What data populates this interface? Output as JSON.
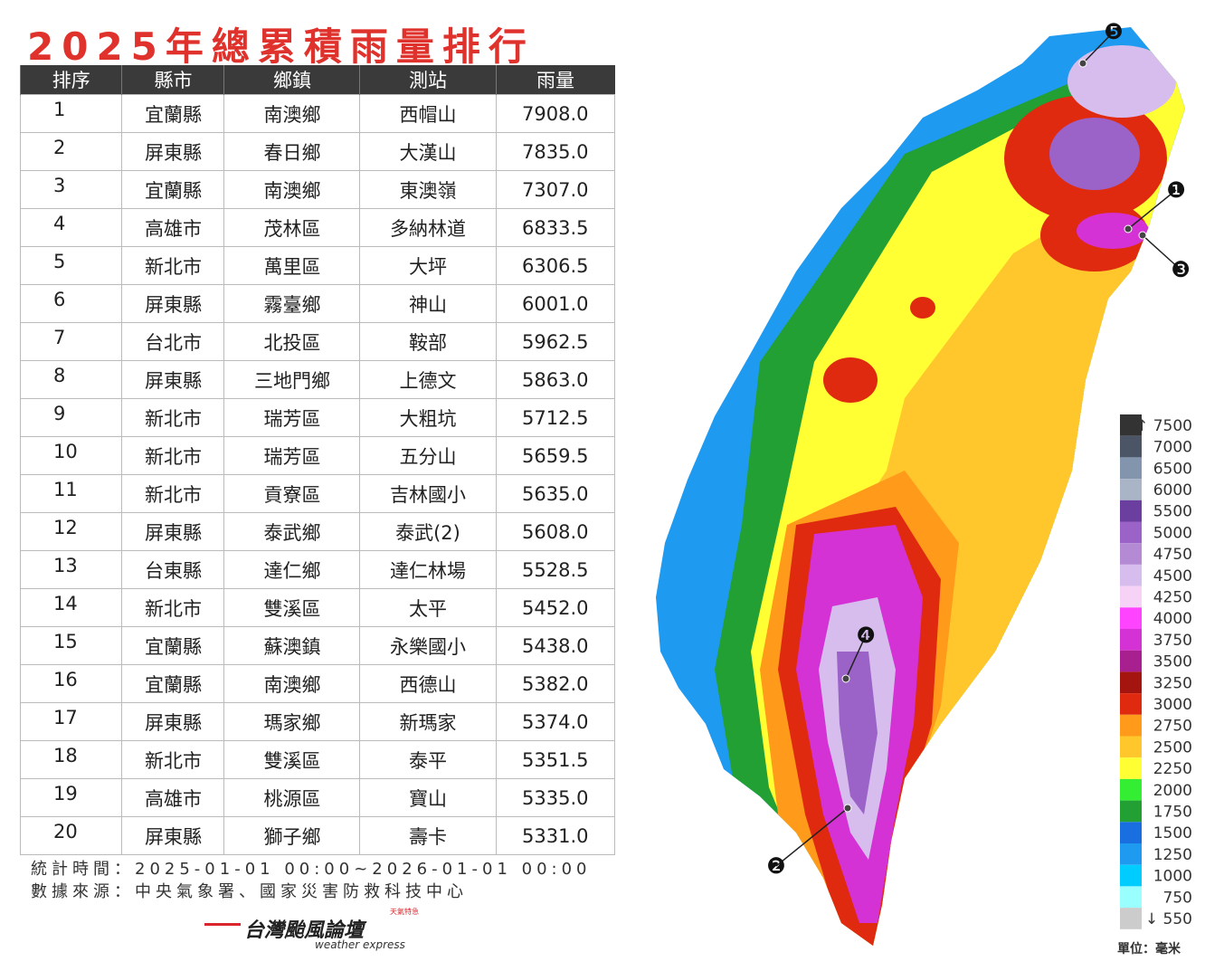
{
  "header": {
    "title": "2025年總累積雨量排行"
  },
  "table": {
    "columns": [
      "排序",
      "縣市",
      "鄉鎮",
      "測站",
      "雨量"
    ],
    "rows": [
      [
        "1",
        "宜蘭縣",
        "南澳鄉",
        "西帽山",
        "7908.0"
      ],
      [
        "2",
        "屏東縣",
        "春日鄉",
        "大漢山",
        "7835.0"
      ],
      [
        "3",
        "宜蘭縣",
        "南澳鄉",
        "東澳嶺",
        "7307.0"
      ],
      [
        "4",
        "高雄市",
        "茂林區",
        "多納林道",
        "6833.5"
      ],
      [
        "5",
        "新北市",
        "萬里區",
        "大坪",
        "6306.5"
      ],
      [
        "6",
        "屏東縣",
        "霧臺鄉",
        "神山",
        "6001.0"
      ],
      [
        "7",
        "台北市",
        "北投區",
        "鞍部",
        "5962.5"
      ],
      [
        "8",
        "屏東縣",
        "三地門鄉",
        "上德文",
        "5863.0"
      ],
      [
        "9",
        "新北市",
        "瑞芳區",
        "大粗坑",
        "5712.5"
      ],
      [
        "10",
        "新北市",
        "瑞芳區",
        "五分山",
        "5659.5"
      ],
      [
        "11",
        "新北市",
        "貢寮區",
        "吉林國小",
        "5635.0"
      ],
      [
        "12",
        "屏東縣",
        "泰武鄉",
        "泰武(2)",
        "5608.0"
      ],
      [
        "13",
        "台東縣",
        "達仁鄉",
        "達仁林場",
        "5528.5"
      ],
      [
        "14",
        "新北市",
        "雙溪區",
        "太平",
        "5452.0"
      ],
      [
        "15",
        "宜蘭縣",
        "蘇澳鎮",
        "永樂國小",
        "5438.0"
      ],
      [
        "16",
        "宜蘭縣",
        "南澳鄉",
        "西德山",
        "5382.0"
      ],
      [
        "17",
        "屏東縣",
        "瑪家鄉",
        "新瑪家",
        "5374.0"
      ],
      [
        "18",
        "新北市",
        "雙溪區",
        "泰平",
        "5351.5"
      ],
      [
        "19",
        "高雄市",
        "桃源區",
        "寶山",
        "5335.0"
      ],
      [
        "20",
        "屏東縣",
        "獅子鄉",
        "壽卡",
        "5331.0"
      ]
    ]
  },
  "footer": {
    "period": "統計時間：2025-01-01 00:00~2026-01-01 00:00",
    "source": "數據來源：中央氣象署、國家災害防救科技中心"
  },
  "logo": {
    "name": "台灣颱風論壇",
    "tag": "天氣特急",
    "sub": "weather express"
  },
  "map": {
    "markers": [
      "❶",
      "❷",
      "❸",
      "❹",
      "❺"
    ],
    "legend": {
      "unit": "單位：毫米",
      "items": [
        {
          "label": "↑ 7500",
          "color": "#333333"
        },
        {
          "label": "7000",
          "color": "#4b5566"
        },
        {
          "label": "6500",
          "color": "#8394ad"
        },
        {
          "label": "6000",
          "color": "#a9b4c6"
        },
        {
          "label": "5500",
          "color": "#6b3fa0"
        },
        {
          "label": "5000",
          "color": "#9b62c8"
        },
        {
          "label": "4750",
          "color": "#b48ad4"
        },
        {
          "label": "4500",
          "color": "#d6bdee"
        },
        {
          "label": "4250",
          "color": "#f6d2f6"
        },
        {
          "label": "4000",
          "color": "#ff44ff"
        },
        {
          "label": "3750",
          "color": "#d432d4"
        },
        {
          "label": "3500",
          "color": "#a8208f"
        },
        {
          "label": "3250",
          "color": "#a3150e"
        },
        {
          "label": "3000",
          "color": "#e02a10"
        },
        {
          "label": "2750",
          "color": "#ff9a1a"
        },
        {
          "label": "2500",
          "color": "#ffc72c"
        },
        {
          "label": "2250",
          "color": "#ffff33"
        },
        {
          "label": "2000",
          "color": "#33ee33"
        },
        {
          "label": "1750",
          "color": "#22a033"
        },
        {
          "label": "1500",
          "color": "#1a6fe0"
        },
        {
          "label": "1250",
          "color": "#1e9af0"
        },
        {
          "label": "1000",
          "color": "#00ccff"
        },
        {
          "label": "750",
          "color": "#99ffff"
        },
        {
          "label": "↓ 550",
          "color": "#cccccc"
        }
      ]
    }
  }
}
